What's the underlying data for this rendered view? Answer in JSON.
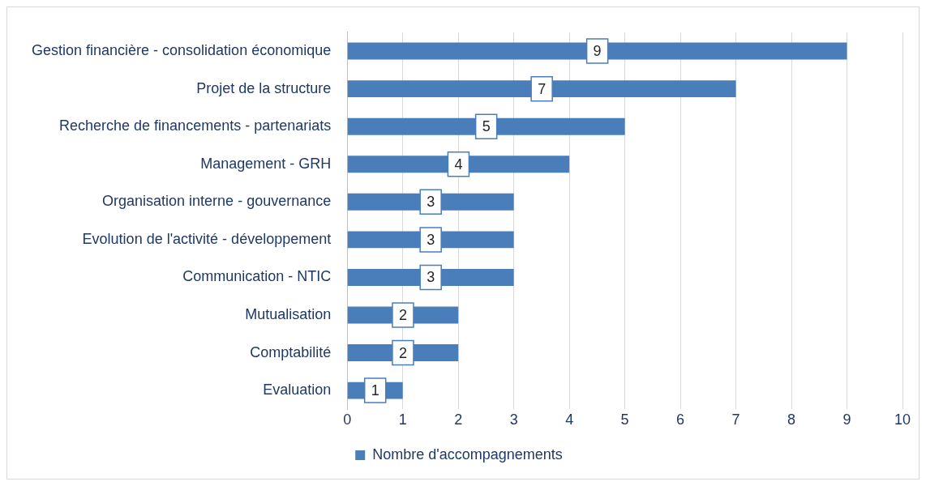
{
  "chart_data": {
    "type": "bar",
    "orientation": "horizontal",
    "categories": [
      "Gestion financière - consolidation économique",
      "Projet de la structure",
      "Recherche de financements - partenariats",
      "Management - GRH",
      "Organisation interne - gouvernance",
      "Evolution de l'activité - développement",
      "Communication - NTIC",
      "Mutualisation",
      "Comptabilité",
      "Evaluation"
    ],
    "series": [
      {
        "name": "Nombre d'accompagnements",
        "color": "#4a7ebb",
        "values": [
          9,
          7,
          5,
          4,
          3,
          3,
          3,
          2,
          2,
          1
        ]
      }
    ],
    "xlim": [
      0,
      10
    ],
    "xticks": [
      0,
      1,
      2,
      3,
      4,
      5,
      6,
      7,
      8,
      9,
      10
    ],
    "grid": "x",
    "legend": "bottom",
    "data_labels": true
  }
}
